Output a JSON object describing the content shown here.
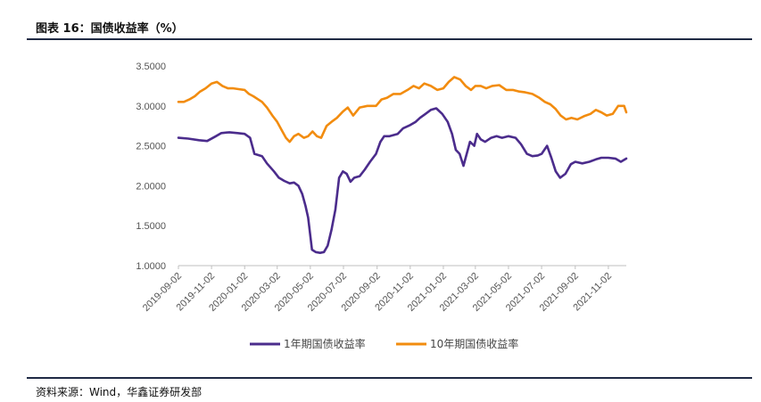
{
  "caption": "图表 16：国债收益率（%）",
  "source": "资料来源：Wind，华鑫证券研发部",
  "colors": {
    "one_year": "#4b2c8c",
    "ten_year": "#f28c0f",
    "axis": "#bfbfbf",
    "rule": "#1f2a44"
  },
  "chart_data": {
    "type": "line",
    "title": "",
    "xlabel": "",
    "ylabel": "",
    "ylim": [
      1.0,
      3.5
    ],
    "yticks": [
      "1.0000",
      "1.5000",
      "2.0000",
      "2.5000",
      "3.0000",
      "3.5000"
    ],
    "yticks_values": [
      1.0,
      1.5,
      2.0,
      2.5,
      3.0,
      3.5
    ],
    "xlim": [
      "2019-09-02",
      "2021-12-05"
    ],
    "xticks": [
      "2019-09-02",
      "2019-11-02",
      "2020-01-02",
      "2020-03-02",
      "2020-05-02",
      "2020-07-02",
      "2020-09-02",
      "2020-11-02",
      "2021-01-02",
      "2021-03-02",
      "2021-05-02",
      "2021-07-02",
      "2021-09-02",
      "2021-11-02"
    ],
    "grid": false,
    "legend_position": "bottom",
    "series": [
      {
        "name": "1年期国债收益率",
        "color": "#4b2c8c",
        "x": [
          "2019-09-02",
          "2019-09-20",
          "2019-10-10",
          "2019-10-25",
          "2019-11-10",
          "2019-11-20",
          "2019-12-05",
          "2019-12-20",
          "2020-01-02",
          "2020-01-12",
          "2020-01-20",
          "2020-02-03",
          "2020-02-12",
          "2020-02-25",
          "2020-03-05",
          "2020-03-15",
          "2020-03-25",
          "2020-04-02",
          "2020-04-10",
          "2020-04-17",
          "2020-04-23",
          "2020-04-28",
          "2020-05-05",
          "2020-05-12",
          "2020-05-20",
          "2020-05-27",
          "2020-06-03",
          "2020-06-10",
          "2020-06-17",
          "2020-06-24",
          "2020-07-01",
          "2020-07-08",
          "2020-07-15",
          "2020-07-22",
          "2020-08-01",
          "2020-08-10",
          "2020-08-20",
          "2020-08-31",
          "2020-09-08",
          "2020-09-15",
          "2020-09-25",
          "2020-10-10",
          "2020-10-20",
          "2020-11-02",
          "2020-11-12",
          "2020-11-20",
          "2020-11-30",
          "2020-12-10",
          "2020-12-20",
          "2020-12-31",
          "2021-01-10",
          "2021-01-18",
          "2021-01-25",
          "2021-02-01",
          "2021-02-08",
          "2021-02-20",
          "2021-02-28",
          "2021-03-05",
          "2021-03-12",
          "2021-03-20",
          "2021-03-31",
          "2021-04-10",
          "2021-04-20",
          "2021-05-02",
          "2021-05-15",
          "2021-05-25",
          "2021-06-05",
          "2021-06-15",
          "2021-06-25",
          "2021-07-02",
          "2021-07-12",
          "2021-07-20",
          "2021-07-28",
          "2021-08-05",
          "2021-08-15",
          "2021-08-25",
          "2021-09-02",
          "2021-09-15",
          "2021-09-28",
          "2021-10-10",
          "2021-10-20",
          "2021-11-02",
          "2021-11-15",
          "2021-11-25",
          "2021-12-05"
        ],
        "values": [
          2.6,
          2.59,
          2.57,
          2.56,
          2.62,
          2.66,
          2.67,
          2.66,
          2.65,
          2.6,
          2.4,
          2.37,
          2.28,
          2.18,
          2.1,
          2.06,
          2.03,
          2.04,
          2.0,
          1.9,
          1.75,
          1.6,
          1.2,
          1.17,
          1.16,
          1.17,
          1.25,
          1.45,
          1.7,
          2.1,
          2.18,
          2.15,
          2.05,
          2.1,
          2.12,
          2.2,
          2.3,
          2.4,
          2.55,
          2.62,
          2.62,
          2.65,
          2.72,
          2.76,
          2.8,
          2.85,
          2.9,
          2.95,
          2.97,
          2.9,
          2.8,
          2.65,
          2.45,
          2.4,
          2.25,
          2.55,
          2.5,
          2.65,
          2.58,
          2.55,
          2.6,
          2.62,
          2.6,
          2.62,
          2.6,
          2.52,
          2.4,
          2.37,
          2.38,
          2.4,
          2.5,
          2.35,
          2.18,
          2.1,
          2.15,
          2.27,
          2.3,
          2.28,
          2.3,
          2.33,
          2.35,
          2.35,
          2.34,
          2.3,
          2.34
        ]
      },
      {
        "name": "10年期国债收益率",
        "color": "#f28c0f",
        "x": [
          "2019-09-02",
          "2019-09-12",
          "2019-09-22",
          "2019-10-02",
          "2019-10-12",
          "2019-10-22",
          "2019-11-02",
          "2019-11-12",
          "2019-11-22",
          "2019-12-02",
          "2019-12-12",
          "2019-12-22",
          "2020-01-02",
          "2020-01-10",
          "2020-01-18",
          "2020-02-03",
          "2020-02-12",
          "2020-02-22",
          "2020-03-02",
          "2020-03-10",
          "2020-03-18",
          "2020-03-25",
          "2020-04-02",
          "2020-04-10",
          "2020-04-20",
          "2020-04-28",
          "2020-05-06",
          "2020-05-14",
          "2020-05-22",
          "2020-06-01",
          "2020-06-10",
          "2020-06-20",
          "2020-07-01",
          "2020-07-10",
          "2020-07-20",
          "2020-08-01",
          "2020-08-15",
          "2020-08-31",
          "2020-09-10",
          "2020-09-20",
          "2020-10-02",
          "2020-10-15",
          "2020-10-28",
          "2020-11-08",
          "2020-11-18",
          "2020-11-28",
          "2020-12-10",
          "2020-12-22",
          "2021-01-02",
          "2021-01-12",
          "2021-01-22",
          "2021-02-02",
          "2021-02-12",
          "2021-02-22",
          "2021-03-02",
          "2021-03-12",
          "2021-03-22",
          "2021-04-02",
          "2021-04-15",
          "2021-04-28",
          "2021-05-10",
          "2021-05-22",
          "2021-06-02",
          "2021-06-15",
          "2021-06-28",
          "2021-07-08",
          "2021-07-18",
          "2021-07-28",
          "2021-08-06",
          "2021-08-16",
          "2021-08-26",
          "2021-09-06",
          "2021-09-18",
          "2021-09-30",
          "2021-10-10",
          "2021-10-20",
          "2021-10-30",
          "2021-11-10",
          "2021-11-20",
          "2021-12-01",
          "2021-12-05"
        ],
        "values": [
          3.05,
          3.05,
          3.08,
          3.12,
          3.18,
          3.22,
          3.28,
          3.3,
          3.25,
          3.22,
          3.22,
          3.21,
          3.2,
          3.15,
          3.12,
          3.05,
          2.98,
          2.88,
          2.8,
          2.7,
          2.6,
          2.55,
          2.62,
          2.65,
          2.6,
          2.62,
          2.68,
          2.62,
          2.6,
          2.75,
          2.8,
          2.85,
          2.93,
          2.98,
          2.88,
          2.98,
          3.0,
          3.0,
          3.08,
          3.1,
          3.15,
          3.15,
          3.2,
          3.25,
          3.22,
          3.28,
          3.25,
          3.2,
          3.22,
          3.3,
          3.36,
          3.33,
          3.25,
          3.2,
          3.25,
          3.25,
          3.22,
          3.25,
          3.26,
          3.2,
          3.2,
          3.18,
          3.17,
          3.15,
          3.1,
          3.05,
          3.02,
          2.96,
          2.88,
          2.83,
          2.85,
          2.83,
          2.87,
          2.9,
          2.95,
          2.92,
          2.88,
          2.9,
          3.0,
          3.0,
          2.92
        ]
      }
    ]
  }
}
